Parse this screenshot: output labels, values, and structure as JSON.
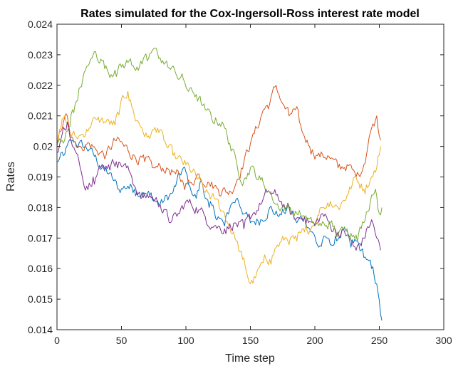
{
  "chart_data": {
    "type": "line",
    "title": "Rates simulated for the Cox-Ingersoll-Ross interest rate model",
    "xlabel": "Time step",
    "ylabel": "Rates",
    "xlim": [
      0,
      300
    ],
    "ylim": [
      0.014,
      0.024
    ],
    "xticks": [
      0,
      50,
      100,
      150,
      200,
      250,
      300
    ],
    "xtick_labels": [
      "0",
      "50",
      "100",
      "150",
      "200",
      "250",
      "300"
    ],
    "yticks": [
      0.014,
      0.015,
      0.016,
      0.017,
      0.018,
      0.019,
      0.02,
      0.021,
      0.022,
      0.023,
      0.024
    ],
    "ytick_labels": [
      "0.014",
      "0.015",
      "0.016",
      "0.017",
      "0.018",
      "0.019",
      "0.02",
      "0.021",
      "0.022",
      "0.023",
      "0.024"
    ],
    "grid": false,
    "box": true,
    "colors": [
      "#0072BD",
      "#D95319",
      "#EDB120",
      "#7E2F8E",
      "#77AC30"
    ],
    "x_step": 1,
    "n_points": 253,
    "series": [
      {
        "color": "#0072BD",
        "keypoints": [
          [
            0,
            0.0195
          ],
          [
            5,
            0.0197
          ],
          [
            12,
            0.0202
          ],
          [
            20,
            0.02
          ],
          [
            25,
            0.0199
          ],
          [
            35,
            0.0193
          ],
          [
            40,
            0.0191
          ],
          [
            48,
            0.0186
          ],
          [
            55,
            0.0187
          ],
          [
            60,
            0.0186
          ],
          [
            66,
            0.0185
          ],
          [
            72,
            0.0184
          ],
          [
            80,
            0.0181
          ],
          [
            90,
            0.0185
          ],
          [
            98,
            0.0193
          ],
          [
            103,
            0.0187
          ],
          [
            108,
            0.0183
          ],
          [
            112,
            0.0189
          ],
          [
            118,
            0.018
          ],
          [
            125,
            0.0177
          ],
          [
            130,
            0.0174
          ],
          [
            135,
            0.0181
          ],
          [
            140,
            0.0183
          ],
          [
            146,
            0.0178
          ],
          [
            150,
            0.0175
          ],
          [
            158,
            0.0176
          ],
          [
            165,
            0.018
          ],
          [
            172,
            0.0177
          ],
          [
            180,
            0.018
          ],
          [
            186,
            0.0175
          ],
          [
            192,
            0.0177
          ],
          [
            198,
            0.0172
          ],
          [
            203,
            0.0167
          ],
          [
            210,
            0.017
          ],
          [
            215,
            0.0168
          ],
          [
            222,
            0.0173
          ],
          [
            228,
            0.0167
          ],
          [
            232,
            0.0169
          ],
          [
            236,
            0.0166
          ],
          [
            240,
            0.0163
          ],
          [
            244,
            0.016
          ],
          [
            248,
            0.0155
          ],
          [
            251,
            0.0145
          ],
          [
            252,
            0.0143
          ]
        ]
      },
      {
        "color": "#D95319",
        "keypoints": [
          [
            0,
            0.02
          ],
          [
            3,
            0.0205
          ],
          [
            8,
            0.021
          ],
          [
            12,
            0.0203
          ],
          [
            18,
            0.02
          ],
          [
            25,
            0.0201
          ],
          [
            30,
            0.0199
          ],
          [
            38,
            0.0197
          ],
          [
            45,
            0.0202
          ],
          [
            52,
            0.02
          ],
          [
            60,
            0.0197
          ],
          [
            68,
            0.0195
          ],
          [
            75,
            0.0193
          ],
          [
            85,
            0.0193
          ],
          [
            92,
            0.0191
          ],
          [
            98,
            0.0188
          ],
          [
            103,
            0.0188
          ],
          [
            110,
            0.0191
          ],
          [
            118,
            0.0188
          ],
          [
            125,
            0.0186
          ],
          [
            135,
            0.0185
          ],
          [
            145,
            0.0195
          ],
          [
            150,
            0.0201
          ],
          [
            155,
            0.0206
          ],
          [
            160,
            0.0212
          ],
          [
            165,
            0.0214
          ],
          [
            170,
            0.022
          ],
          [
            175,
            0.0214
          ],
          [
            180,
            0.021
          ],
          [
            185,
            0.0212
          ],
          [
            190,
            0.0205
          ],
          [
            196,
            0.02
          ],
          [
            202,
            0.0197
          ],
          [
            210,
            0.0197
          ],
          [
            218,
            0.0193
          ],
          [
            225,
            0.0194
          ],
          [
            232,
            0.019
          ],
          [
            238,
            0.0194
          ],
          [
            244,
            0.0206
          ],
          [
            248,
            0.021
          ],
          [
            251,
            0.0202
          ]
        ]
      },
      {
        "color": "#EDB120",
        "keypoints": [
          [
            0,
            0.0202
          ],
          [
            3,
            0.0206
          ],
          [
            6,
            0.021
          ],
          [
            10,
            0.0204
          ],
          [
            15,
            0.0203
          ],
          [
            20,
            0.0204
          ],
          [
            25,
            0.0206
          ],
          [
            30,
            0.0209
          ],
          [
            38,
            0.0208
          ],
          [
            45,
            0.0207
          ],
          [
            52,
            0.0216
          ],
          [
            55,
            0.0218
          ],
          [
            60,
            0.021
          ],
          [
            66,
            0.0206
          ],
          [
            70,
            0.0203
          ],
          [
            78,
            0.0206
          ],
          [
            85,
            0.02
          ],
          [
            92,
            0.0196
          ],
          [
            100,
            0.0194
          ],
          [
            108,
            0.019
          ],
          [
            115,
            0.0185
          ],
          [
            122,
            0.0183
          ],
          [
            130,
            0.0178
          ],
          [
            138,
            0.017
          ],
          [
            144,
            0.0163
          ],
          [
            150,
            0.0155
          ],
          [
            154,
            0.0157
          ],
          [
            160,
            0.0162
          ],
          [
            165,
            0.0163
          ],
          [
            170,
            0.0167
          ],
          [
            178,
            0.017
          ],
          [
            186,
            0.0169
          ],
          [
            192,
            0.0172
          ],
          [
            198,
            0.0174
          ],
          [
            205,
            0.018
          ],
          [
            212,
            0.0182
          ],
          [
            218,
            0.018
          ],
          [
            225,
            0.0184
          ],
          [
            232,
            0.019
          ],
          [
            238,
            0.0186
          ],
          [
            244,
            0.019
          ],
          [
            248,
            0.0193
          ],
          [
            251,
            0.02
          ]
        ]
      },
      {
        "color": "#7E2F8E",
        "keypoints": [
          [
            0,
            0.0198
          ],
          [
            4,
            0.0204
          ],
          [
            8,
            0.0208
          ],
          [
            12,
            0.02
          ],
          [
            18,
            0.0193
          ],
          [
            23,
            0.0187
          ],
          [
            28,
            0.019
          ],
          [
            34,
            0.0193
          ],
          [
            40,
            0.0194
          ],
          [
            46,
            0.0195
          ],
          [
            52,
            0.0194
          ],
          [
            58,
            0.019
          ],
          [
            65,
            0.0183
          ],
          [
            72,
            0.0184
          ],
          [
            80,
            0.0181
          ],
          [
            88,
            0.0175
          ],
          [
            95,
            0.0178
          ],
          [
            100,
            0.0182
          ],
          [
            108,
            0.018
          ],
          [
            115,
            0.0177
          ],
          [
            122,
            0.0174
          ],
          [
            130,
            0.0173
          ],
          [
            138,
            0.0175
          ],
          [
            145,
            0.0173
          ],
          [
            152,
            0.0178
          ],
          [
            158,
            0.0181
          ],
          [
            163,
            0.0185
          ],
          [
            170,
            0.0184
          ],
          [
            178,
            0.018
          ],
          [
            185,
            0.0176
          ],
          [
            192,
            0.0177
          ],
          [
            200,
            0.0174
          ],
          [
            206,
            0.0178
          ],
          [
            212,
            0.0174
          ],
          [
            218,
            0.0172
          ],
          [
            225,
            0.0171
          ],
          [
            232,
            0.0166
          ],
          [
            238,
            0.017
          ],
          [
            244,
            0.0176
          ],
          [
            248,
            0.017
          ],
          [
            251,
            0.0166
          ]
        ]
      },
      {
        "color": "#77AC30",
        "keypoints": [
          [
            0,
            0.0201
          ],
          [
            4,
            0.0202
          ],
          [
            8,
            0.0205
          ],
          [
            12,
            0.0212
          ],
          [
            16,
            0.0215
          ],
          [
            20,
            0.0222
          ],
          [
            25,
            0.0227
          ],
          [
            30,
            0.0231
          ],
          [
            35,
            0.0228
          ],
          [
            40,
            0.0224
          ],
          [
            45,
            0.0225
          ],
          [
            50,
            0.0226
          ],
          [
            56,
            0.0228
          ],
          [
            62,
            0.0226
          ],
          [
            70,
            0.0228
          ],
          [
            75,
            0.0232
          ],
          [
            80,
            0.0229
          ],
          [
            86,
            0.0226
          ],
          [
            92,
            0.0224
          ],
          [
            98,
            0.0222
          ],
          [
            102,
            0.0218
          ],
          [
            108,
            0.0217
          ],
          [
            115,
            0.0212
          ],
          [
            120,
            0.0209
          ],
          [
            128,
            0.0208
          ],
          [
            134,
            0.0201
          ],
          [
            140,
            0.0193
          ],
          [
            145,
            0.0189
          ],
          [
            150,
            0.0193
          ],
          [
            158,
            0.0189
          ],
          [
            165,
            0.0185
          ],
          [
            170,
            0.0181
          ],
          [
            178,
            0.018
          ],
          [
            186,
            0.0178
          ],
          [
            192,
            0.0177
          ],
          [
            198,
            0.0175
          ],
          [
            205,
            0.0174
          ],
          [
            212,
            0.0175
          ],
          [
            218,
            0.0171
          ],
          [
            225,
            0.0173
          ],
          [
            232,
            0.0171
          ],
          [
            238,
            0.0175
          ],
          [
            244,
            0.0184
          ],
          [
            247,
            0.0186
          ],
          [
            250,
            0.0178
          ],
          [
            252,
            0.018
          ]
        ]
      }
    ]
  }
}
